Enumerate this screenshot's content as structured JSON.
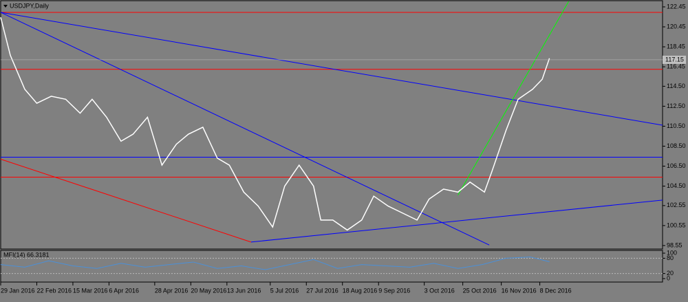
{
  "chart_data": {
    "type": "line",
    "title": "USDJPY,Daily",
    "x": [
      0,
      4,
      10,
      15,
      21,
      27,
      33,
      38,
      44,
      50,
      55,
      61,
      67,
      73,
      78,
      84,
      90,
      95,
      101,
      107,
      113,
      118,
      124,
      130,
      133,
      138,
      144,
      150,
      155,
      161,
      167,
      173,
      178,
      184,
      190,
      195,
      201,
      204,
      210,
      215,
      221,
      225,
      228
    ],
    "values": [
      121.4,
      117.6,
      114.2,
      112.8,
      113.5,
      113.2,
      111.8,
      113.2,
      111.4,
      109.0,
      109.7,
      111.4,
      106.6,
      108.7,
      109.7,
      110.4,
      107.3,
      106.6,
      103.9,
      102.5,
      100.4,
      104.5,
      106.6,
      104.5,
      101.1,
      101.1,
      100.1,
      101.1,
      103.5,
      102.5,
      101.8,
      101.1,
      103.2,
      104.2,
      103.9,
      104.9,
      103.9,
      105.9,
      110.1,
      113.2,
      114.2,
      115.2,
      117.3
    ],
    "color": "#ffffff",
    "last_price": 117.15,
    "xlim": [
      0,
      275
    ],
    "xticks": [
      {
        "value": 0,
        "label": "29 Jan 2016"
      },
      {
        "value": 15,
        "label": "22 Feb 2016"
      },
      {
        "value": 30,
        "label": "15 Mar 2016"
      },
      {
        "value": 45,
        "label": "6 Apr 2016"
      },
      {
        "value": 64,
        "label": "28 Apr 2016"
      },
      {
        "value": 79,
        "label": "20 May 2016"
      },
      {
        "value": 94,
        "label": "13 Jun 2016"
      },
      {
        "value": 112,
        "label": "5 Jul 2016"
      },
      {
        "value": 127,
        "label": "27 Jul 2016"
      },
      {
        "value": 142,
        "label": "18 Aug 2016"
      },
      {
        "value": 157,
        "label": "9 Sep 2016"
      },
      {
        "value": 176,
        "label": "3 Oct 2016"
      },
      {
        "value": 192,
        "label": "25 Oct 2016"
      },
      {
        "value": 208,
        "label": "16 Nov 2016"
      },
      {
        "value": 224,
        "label": "8 Dec 2016"
      }
    ],
    "ylim": [
      98.2,
      123.0
    ],
    "yticks": [
      122.45,
      120.45,
      118.45,
      116.45,
      {
        "value": 114.5,
        "label": "114.50"
      },
      {
        "value": 112.5,
        "label": "112.50"
      },
      {
        "value": 110.5,
        "label": "110.50"
      },
      {
        "value": 108.5,
        "label": "108.50"
      },
      {
        "value": 106.5,
        "label": "106.50"
      },
      {
        "value": 104.5,
        "label": "104.50"
      },
      102.55,
      100.55,
      98.55
    ],
    "levels": [
      {
        "value": 121.9,
        "color": "#ff0000"
      },
      {
        "value": 116.2,
        "color": "#ff0000"
      },
      {
        "value": 105.4,
        "color": "#ff0000"
      },
      {
        "value": 107.4,
        "color": "#0000ff"
      }
    ],
    "trendlines": [
      {
        "x": [
          0,
          275
        ],
        "y": [
          121.9,
          110.6
        ],
        "color": "#0000ff"
      },
      {
        "x": [
          0,
          203
        ],
        "y": [
          121.9,
          98.6
        ],
        "color": "#0000ff"
      },
      {
        "x": [
          104,
          275
        ],
        "y": [
          98.9,
          103.1
        ],
        "color": "#0000ff"
      },
      {
        "x": [
          0,
          104
        ],
        "y": [
          107.2,
          98.9
        ],
        "color": "#ff0000"
      },
      {
        "x": [
          190,
          236
        ],
        "y": [
          103.6,
          123.0
        ],
        "color": "#00ff00"
      }
    ],
    "mfi": {
      "title": "MFI(14) 66.3181",
      "x": [
        0,
        10,
        20,
        30,
        40,
        50,
        60,
        70,
        80,
        90,
        100,
        110,
        120,
        130,
        140,
        150,
        160,
        170,
        180,
        190,
        200,
        210,
        220,
        228
      ],
      "values": [
        55,
        45,
        70,
        50,
        40,
        60,
        45,
        55,
        65,
        40,
        50,
        35,
        55,
        75,
        40,
        55,
        50,
        45,
        60,
        40,
        55,
        80,
        85,
        66.3181
      ],
      "color": "#4a90d9",
      "ylim": [
        0,
        100
      ],
      "yticks": [
        100,
        80,
        20,
        0
      ]
    }
  }
}
